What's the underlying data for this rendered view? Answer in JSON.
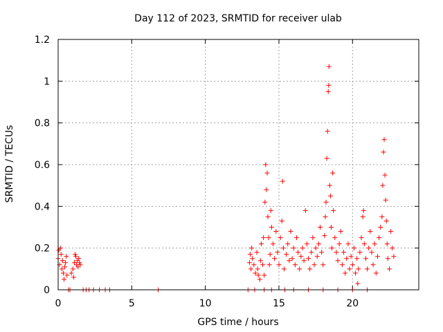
{
  "chart_data": {
    "type": "scatter",
    "title": "Day 112 of 2023, SRMTID for receiver ulab",
    "xlabel": "GPS time / hours",
    "ylabel": "SRMTID / TECUs",
    "xlim": [
      0,
      24.5
    ],
    "ylim": [
      0,
      1.2
    ],
    "xticks": [
      0,
      5,
      10,
      15,
      20
    ],
    "xtick_labels": [
      "0",
      "5",
      "10",
      "15",
      "20"
    ],
    "yticks": [
      0,
      0.2,
      0.4,
      0.6,
      0.8,
      1.0,
      1.2
    ],
    "ytick_labels": [
      "0",
      "0.2",
      "0.4",
      "0.6",
      "0.8",
      "1",
      "1.2"
    ],
    "grid": true,
    "marker": "+",
    "series": [
      {
        "name": "SRMTID",
        "color": "#ff0000",
        "points": [
          [
            0.0,
            0.15
          ],
          [
            0.05,
            0.19
          ],
          [
            0.1,
            0.12
          ],
          [
            0.15,
            0.2
          ],
          [
            0.2,
            0.17
          ],
          [
            0.25,
            0.1
          ],
          [
            0.3,
            0.14
          ],
          [
            0.35,
            0.08
          ],
          [
            0.4,
            0.05
          ],
          [
            0.45,
            0.11
          ],
          [
            0.5,
            0.13
          ],
          [
            0.55,
            0.16
          ],
          [
            0.6,
            0.07
          ],
          [
            0.7,
            0.0
          ],
          [
            0.8,
            0.0
          ],
          [
            0.9,
            0.08
          ],
          [
            1.0,
            0.1
          ],
          [
            1.05,
            0.06
          ],
          [
            1.1,
            0.13
          ],
          [
            1.15,
            0.17
          ],
          [
            1.2,
            0.16
          ],
          [
            1.25,
            0.12
          ],
          [
            1.3,
            0.14
          ],
          [
            1.35,
            0.11
          ],
          [
            1.4,
            0.15
          ],
          [
            1.45,
            0.13
          ],
          [
            1.5,
            0.12
          ],
          [
            1.7,
            0.0
          ],
          [
            1.9,
            0.0
          ],
          [
            2.1,
            0.0
          ],
          [
            2.4,
            0.0
          ],
          [
            2.8,
            0.0
          ],
          [
            3.2,
            0.0
          ],
          [
            3.5,
            0.0
          ],
          [
            6.8,
            0.0
          ],
          [
            12.9,
            0.0
          ],
          [
            13.0,
            0.13
          ],
          [
            13.05,
            0.17
          ],
          [
            13.1,
            0.1
          ],
          [
            13.15,
            0.2
          ],
          [
            13.2,
            0.15
          ],
          [
            13.3,
            0.12
          ],
          [
            13.35,
            0.0
          ],
          [
            13.4,
            0.08
          ],
          [
            13.5,
            0.18
          ],
          [
            13.55,
            0.1
          ],
          [
            13.6,
            0.07
          ],
          [
            13.7,
            0.05
          ],
          [
            13.75,
            0.14
          ],
          [
            13.8,
            0.22
          ],
          [
            13.9,
            0.12
          ],
          [
            13.95,
            0.25
          ],
          [
            14.0,
            0.07
          ],
          [
            14.0,
            0.0
          ],
          [
            14.05,
            0.42
          ],
          [
            14.1,
            0.6
          ],
          [
            14.15,
            0.48
          ],
          [
            14.2,
            0.56
          ],
          [
            14.25,
            0.35
          ],
          [
            14.3,
            0.25
          ],
          [
            14.35,
            0.12
          ],
          [
            14.4,
            0.17
          ],
          [
            14.45,
            0.38
          ],
          [
            14.5,
            0.3
          ],
          [
            14.5,
            0.0
          ],
          [
            14.6,
            0.22
          ],
          [
            14.7,
            0.15
          ],
          [
            14.8,
            0.28
          ],
          [
            14.9,
            0.18
          ],
          [
            15.0,
            0.12
          ],
          [
            15.1,
            0.25
          ],
          [
            15.2,
            0.33
          ],
          [
            15.25,
            0.52
          ],
          [
            15.3,
            0.2
          ],
          [
            15.35,
            0.1
          ],
          [
            15.4,
            0.0
          ],
          [
            15.5,
            0.17
          ],
          [
            15.6,
            0.22
          ],
          [
            15.7,
            0.14
          ],
          [
            15.8,
            0.28
          ],
          [
            15.9,
            0.15
          ],
          [
            16.0,
            0.2
          ],
          [
            16.0,
            0.0
          ],
          [
            16.1,
            0.12
          ],
          [
            16.2,
            0.25
          ],
          [
            16.3,
            0.18
          ],
          [
            16.4,
            0.1
          ],
          [
            16.5,
            0.16
          ],
          [
            16.6,
            0.2
          ],
          [
            16.7,
            0.14
          ],
          [
            16.8,
            0.38
          ],
          [
            16.9,
            0.22
          ],
          [
            17.0,
            0.15
          ],
          [
            17.0,
            0.0
          ],
          [
            17.1,
            0.1
          ],
          [
            17.2,
            0.18
          ],
          [
            17.3,
            0.25
          ],
          [
            17.4,
            0.12
          ],
          [
            17.5,
            0.2
          ],
          [
            17.6,
            0.16
          ],
          [
            17.7,
            0.22
          ],
          [
            17.8,
            0.3
          ],
          [
            17.9,
            0.18
          ],
          [
            18.0,
            0.12
          ],
          [
            18.0,
            0.0
          ],
          [
            18.1,
            0.26
          ],
          [
            18.15,
            0.35
          ],
          [
            18.2,
            0.42
          ],
          [
            18.25,
            0.63
          ],
          [
            18.3,
            0.76
          ],
          [
            18.35,
            0.95
          ],
          [
            18.38,
            0.98
          ],
          [
            18.4,
            1.07
          ],
          [
            18.45,
            0.5
          ],
          [
            18.5,
            0.45
          ],
          [
            18.55,
            0.3
          ],
          [
            18.6,
            0.2
          ],
          [
            18.65,
            0.56
          ],
          [
            18.7,
            0.38
          ],
          [
            18.8,
            0.25
          ],
          [
            18.9,
            0.18
          ],
          [
            19.0,
            0.14
          ],
          [
            19.0,
            0.0
          ],
          [
            19.1,
            0.22
          ],
          [
            19.2,
            0.28
          ],
          [
            19.3,
            0.12
          ],
          [
            19.4,
            0.18
          ],
          [
            19.5,
            0.08
          ],
          [
            19.6,
            0.15
          ],
          [
            19.7,
            0.22
          ],
          [
            19.8,
            0.1
          ],
          [
            19.9,
            0.16
          ],
          [
            20.0,
            0.12
          ],
          [
            20.0,
            0.0
          ],
          [
            20.1,
            0.2
          ],
          [
            20.2,
            0.08
          ],
          [
            20.3,
            0.15
          ],
          [
            20.35,
            0.03
          ],
          [
            20.4,
            0.1
          ],
          [
            20.5,
            0.18
          ],
          [
            20.6,
            0.25
          ],
          [
            20.7,
            0.35
          ],
          [
            20.75,
            0.38
          ],
          [
            20.8,
            0.22
          ],
          [
            20.9,
            0.15
          ],
          [
            21.0,
            0.1
          ],
          [
            21.0,
            0.0
          ],
          [
            21.1,
            0.2
          ],
          [
            21.2,
            0.28
          ],
          [
            21.3,
            0.18
          ],
          [
            21.4,
            0.12
          ],
          [
            21.5,
            0.22
          ],
          [
            21.6,
            0.08
          ],
          [
            21.7,
            0.16
          ],
          [
            21.8,
            0.25
          ],
          [
            21.9,
            0.3
          ],
          [
            22.0,
            0.35
          ],
          [
            22.05,
            0.5
          ],
          [
            22.1,
            0.66
          ],
          [
            22.15,
            0.72
          ],
          [
            22.2,
            0.55
          ],
          [
            22.25,
            0.43
          ],
          [
            22.3,
            0.33
          ],
          [
            22.35,
            0.22
          ],
          [
            22.4,
            0.15
          ],
          [
            22.5,
            0.1
          ],
          [
            22.6,
            0.28
          ],
          [
            22.7,
            0.2
          ],
          [
            22.8,
            0.16
          ]
        ]
      }
    ]
  }
}
